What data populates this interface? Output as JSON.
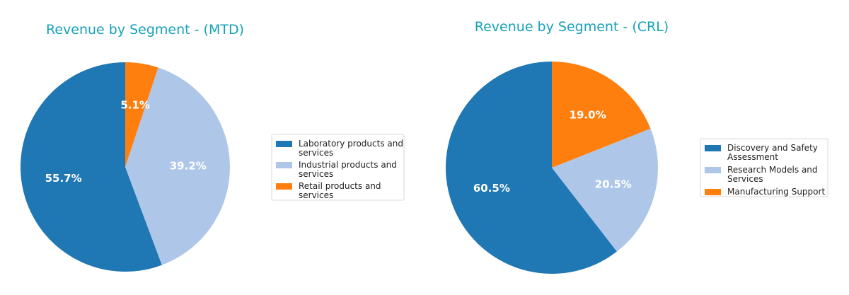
{
  "chart_data": [
    {
      "type": "pie",
      "title": "Revenue by Segment - (MTD)",
      "categories": [
        "Laboratory products and services",
        "Industrial products and services",
        "Retail products and services"
      ],
      "legend_lines": [
        [
          "Laboratory products and",
          "services"
        ],
        [
          "Industrial products and",
          "services"
        ],
        [
          "Retail products and",
          "services"
        ]
      ],
      "values": [
        55.7,
        39.2,
        5.1
      ],
      "labels": [
        "55.7%",
        "39.2%",
        "5.1%"
      ],
      "colors": [
        "#1f77b4",
        "#aec7e8",
        "#ff7f0e"
      ],
      "start_angle": "top",
      "direction": "counterclockwise",
      "legend_position": "right"
    },
    {
      "type": "pie",
      "title": "Revenue by Segment - (CRL)",
      "categories": [
        "Discovery and Safety Assessment",
        "Research Models and Services",
        "Manufacturing Support"
      ],
      "legend_lines": [
        [
          "Discovery and Safety",
          "Assessment"
        ],
        [
          "Research Models and",
          "Services"
        ],
        [
          "Manufacturing Support"
        ]
      ],
      "values": [
        60.5,
        20.5,
        19.0
      ],
      "labels": [
        "60.5%",
        "20.5%",
        "19.0%"
      ],
      "colors": [
        "#1f77b4",
        "#aec7e8",
        "#ff7f0e"
      ],
      "start_angle": "top",
      "direction": "counterclockwise",
      "legend_position": "right"
    }
  ],
  "title_color": "#17a2b8"
}
